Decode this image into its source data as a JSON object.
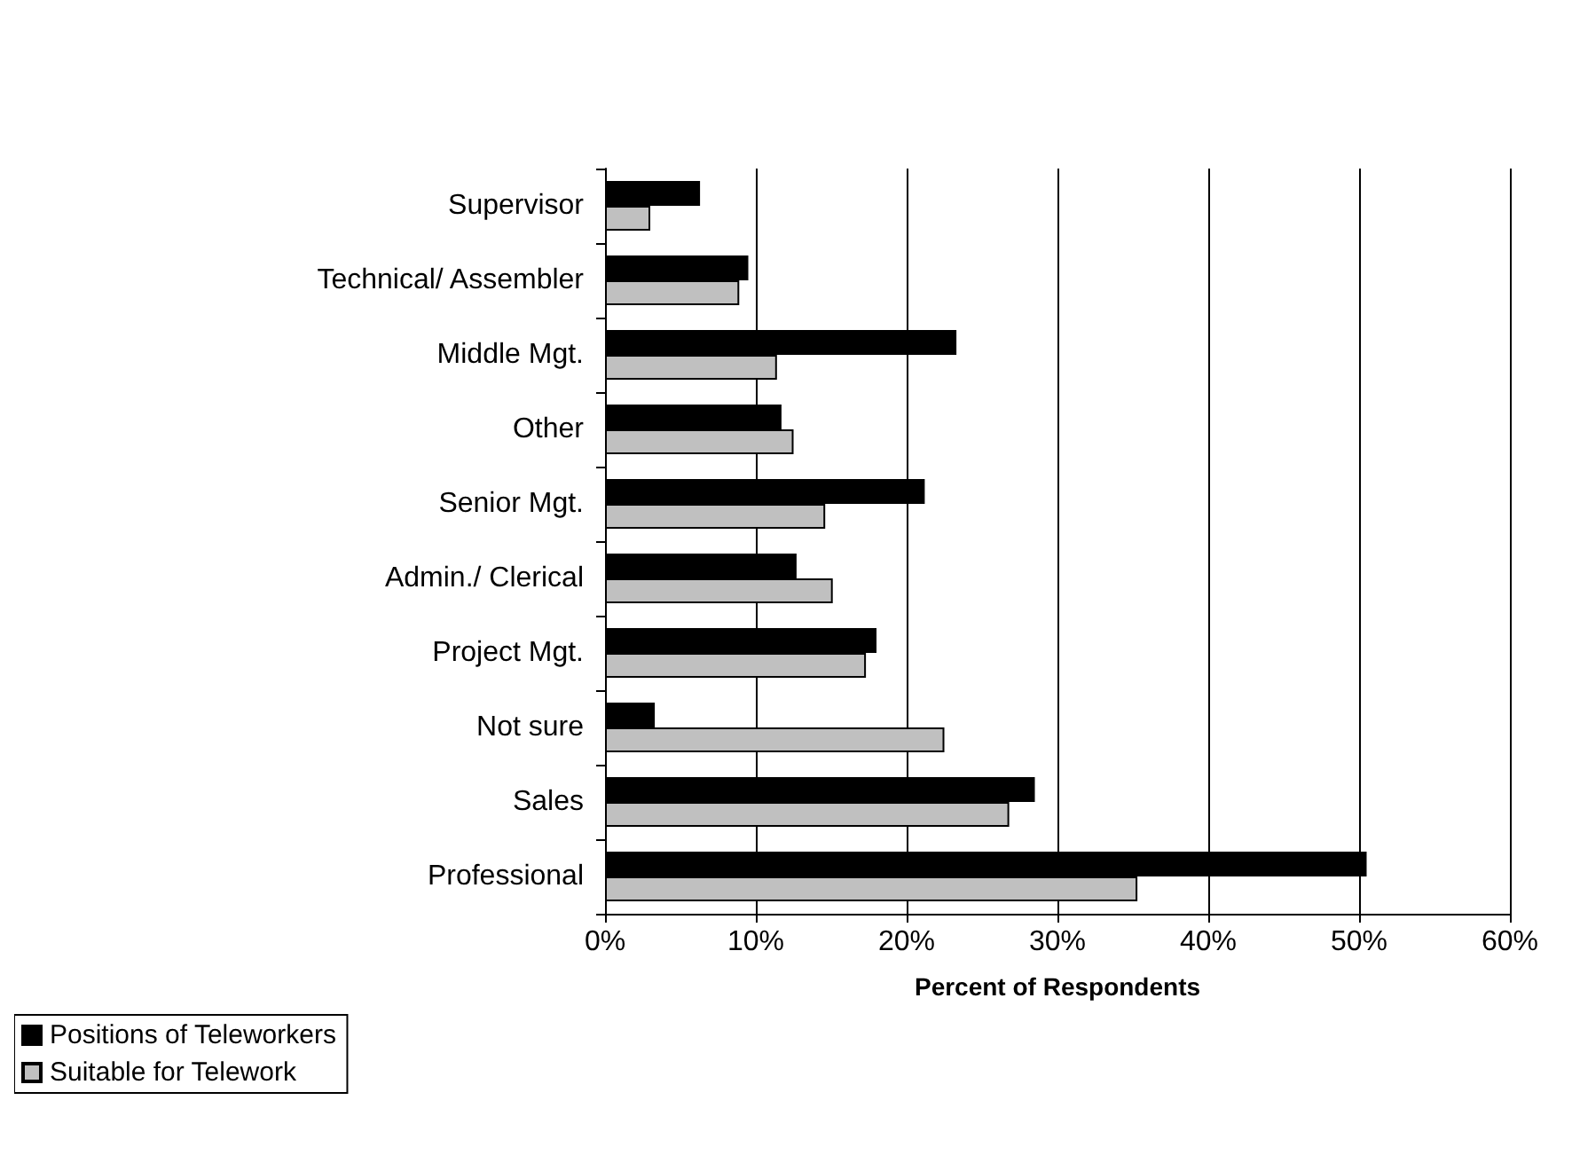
{
  "chart_data": {
    "type": "bar",
    "orientation": "horizontal",
    "xlabel": "Percent of Respondents",
    "categories": [
      "Supervisor",
      "Technical/ Assembler",
      "Middle Mgt.",
      "Other",
      "Senior Mgt.",
      "Admin./ Clerical",
      "Project Mgt.",
      "Not sure",
      "Sales",
      "Professional"
    ],
    "series": [
      {
        "name": "Positions of Teleworkers",
        "color": "#000000",
        "values": [
          6.3,
          9.5,
          23.3,
          11.7,
          21.2,
          12.7,
          18.0,
          3.3,
          28.5,
          50.5
        ]
      },
      {
        "name": "Suitable for Telework",
        "color": "#c0c0c0",
        "values": [
          3.0,
          8.9,
          11.4,
          12.5,
          14.6,
          15.1,
          17.3,
          22.5,
          26.8,
          35.3
        ]
      }
    ],
    "xlim": [
      0,
      60
    ],
    "xticks": [
      {
        "value": 0,
        "label": "0%"
      },
      {
        "value": 10,
        "label": "10%"
      },
      {
        "value": 20,
        "label": "20%"
      },
      {
        "value": 30,
        "label": "30%"
      },
      {
        "value": 40,
        "label": "40%"
      },
      {
        "value": 50,
        "label": "50%"
      },
      {
        "value": 60,
        "label": "60%"
      }
    ],
    "grid": "x",
    "legend": "bottom left"
  }
}
